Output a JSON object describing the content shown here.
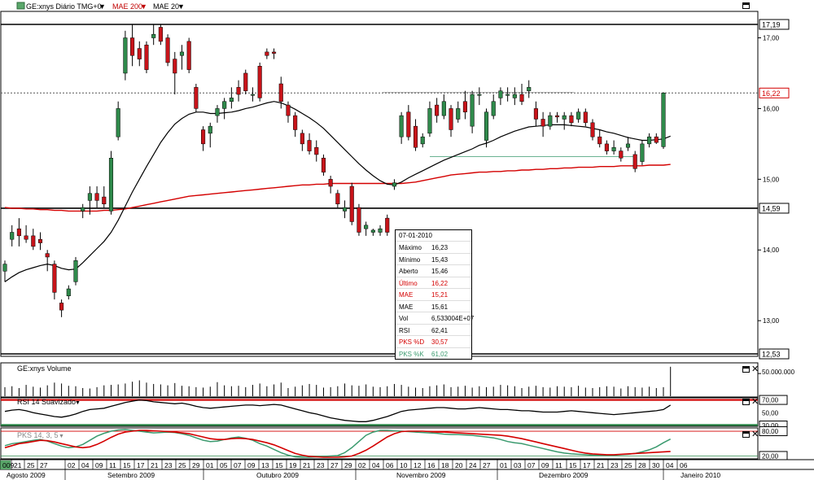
{
  "header": {
    "symbol_label": "GE:xnys Diário TMG+0",
    "mae200_label": "MAE 200",
    "mae20_label": "MAE 20"
  },
  "colors": {
    "up": "#2f8a4b",
    "down": "#c8141a",
    "mae20": "#000000",
    "mae200": "#d40000",
    "pks_d": "#d40000",
    "pks_k": "#3a9a6e"
  },
  "price_axis": {
    "ticks": [
      "17,00",
      "16,00",
      "15,00",
      "14,00",
      "13,00"
    ],
    "levels": [
      {
        "label": "17,19",
        "style": "black"
      },
      {
        "label": "16,22",
        "style": "red"
      },
      {
        "label": "14,59",
        "style": "black"
      },
      {
        "label": "12,53",
        "style": "black"
      }
    ]
  },
  "tooltip": {
    "date": "07-01-2010",
    "rows": [
      {
        "label": "Máximo",
        "value": "16,23",
        "color": "#000000"
      },
      {
        "label": "Mínimo",
        "value": "15,43",
        "color": "#000000"
      },
      {
        "label": "Aberto",
        "value": "15,46",
        "color": "#000000"
      },
      {
        "label": "Último",
        "value": "16,22",
        "color": "#d40000"
      },
      {
        "label": "MAE",
        "value": "15,21",
        "color": "#d40000"
      },
      {
        "label": "MAE",
        "value": "15,61",
        "color": "#000000"
      },
      {
        "label": "Vol",
        "value": "6,533004E+07",
        "color": "#000000"
      },
      {
        "label": "RSI",
        "value": "62,41",
        "color": "#000000"
      },
      {
        "label": "PKS %D",
        "value": "30,57",
        "color": "#d40000"
      },
      {
        "label": "PKS %K",
        "value": "61,02",
        "color": "#3a9a6e"
      }
    ]
  },
  "volume_panel": {
    "title": "GE:xnys Volume",
    "tick": "50.000.000"
  },
  "rsi_panel": {
    "title": "RSI 14 Suavizado",
    "ticks": [
      "70,00",
      "50,00",
      "30,00"
    ]
  },
  "pks_panel": {
    "title": "PKS 14, 3, 5",
    "ticks": [
      "80,00",
      "20,00"
    ]
  },
  "x_axis": {
    "days": [
      "009",
      "21",
      "25",
      "27",
      "02",
      "04",
      "09",
      "11",
      "15",
      "17",
      "21",
      "23",
      "25",
      "29",
      "01",
      "05",
      "07",
      "09",
      "13",
      "15",
      "19",
      "21",
      "23",
      "27",
      "29",
      "02",
      "04",
      "06",
      "10",
      "12",
      "16",
      "18",
      "20",
      "24",
      "27",
      "01",
      "03",
      "07",
      "09",
      "11",
      "15",
      "17",
      "21",
      "23",
      "25",
      "28",
      "30",
      "04",
      "06"
    ],
    "months": [
      "Agosto 2009",
      "Setembro 2009",
      "Outubro 2009",
      "Novembro 2009",
      "Dezembro 2009",
      "Janeiro 2010"
    ]
  },
  "chart_data": {
    "type": "candlestick",
    "title": "GE:xnys Diário TMG+0",
    "ylim": [
      12.53,
      17.19
    ],
    "horizontal_levels": [
      17.19,
      16.22,
      14.59,
      12.53
    ],
    "candles": [
      {
        "o": 13.7,
        "h": 13.85,
        "l": 13.55,
        "c": 13.8
      },
      {
        "o": 14.15,
        "h": 14.35,
        "l": 14.05,
        "c": 14.25
      },
      {
        "o": 14.3,
        "h": 14.45,
        "l": 14.05,
        "c": 14.2
      },
      {
        "o": 14.2,
        "h": 14.35,
        "l": 14.1,
        "c": 14.15
      },
      {
        "o": 14.2,
        "h": 14.3,
        "l": 14.0,
        "c": 14.05
      },
      {
        "o": 14.15,
        "h": 14.25,
        "l": 14.0,
        "c": 14.1
      },
      {
        "o": 13.95,
        "h": 14.0,
        "l": 13.7,
        "c": 13.9
      },
      {
        "o": 13.8,
        "h": 13.85,
        "l": 13.3,
        "c": 13.4
      },
      {
        "o": 13.25,
        "h": 13.3,
        "l": 13.05,
        "c": 13.15
      },
      {
        "o": 13.35,
        "h": 13.5,
        "l": 13.3,
        "c": 13.45
      },
      {
        "o": 13.55,
        "h": 13.9,
        "l": 13.5,
        "c": 13.85
      },
      {
        "o": 14.55,
        "h": 14.65,
        "l": 14.45,
        "c": 14.6
      },
      {
        "o": 14.7,
        "h": 14.9,
        "l": 14.5,
        "c": 14.8
      },
      {
        "o": 14.8,
        "h": 14.9,
        "l": 14.6,
        "c": 14.7
      },
      {
        "o": 14.75,
        "h": 14.9,
        "l": 14.6,
        "c": 14.65
      },
      {
        "o": 14.55,
        "h": 15.4,
        "l": 14.5,
        "c": 15.3
      },
      {
        "o": 15.6,
        "h": 16.1,
        "l": 15.55,
        "c": 16.0
      },
      {
        "o": 16.5,
        "h": 17.1,
        "l": 16.4,
        "c": 17.0
      },
      {
        "o": 17.0,
        "h": 17.19,
        "l": 16.6,
        "c": 16.75
      },
      {
        "o": 16.85,
        "h": 16.95,
        "l": 16.6,
        "c": 16.7
      },
      {
        "o": 16.9,
        "h": 16.95,
        "l": 16.5,
        "c": 16.55
      },
      {
        "o": 17.0,
        "h": 17.19,
        "l": 16.9,
        "c": 17.05
      },
      {
        "o": 17.15,
        "h": 17.19,
        "l": 16.9,
        "c": 16.95
      },
      {
        "o": 17.0,
        "h": 17.05,
        "l": 16.6,
        "c": 16.65
      },
      {
        "o": 16.7,
        "h": 16.8,
        "l": 16.2,
        "c": 16.5
      },
      {
        "o": 16.75,
        "h": 16.9,
        "l": 16.55,
        "c": 16.8
      },
      {
        "o": 16.95,
        "h": 17.0,
        "l": 16.5,
        "c": 16.55
      },
      {
        "o": 16.3,
        "h": 16.35,
        "l": 15.95,
        "c": 16.0
      },
      {
        "o": 15.7,
        "h": 15.75,
        "l": 15.4,
        "c": 15.5
      },
      {
        "o": 15.65,
        "h": 15.8,
        "l": 15.45,
        "c": 15.75
      },
      {
        "o": 15.9,
        "h": 16.05,
        "l": 15.8,
        "c": 16.0
      },
      {
        "o": 16.0,
        "h": 16.15,
        "l": 15.85,
        "c": 16.1
      },
      {
        "o": 16.1,
        "h": 16.3,
        "l": 16.0,
        "c": 16.15
      },
      {
        "o": 16.3,
        "h": 16.4,
        "l": 16.1,
        "c": 16.2
      },
      {
        "o": 16.5,
        "h": 16.55,
        "l": 16.2,
        "c": 16.25
      },
      {
        "o": 16.2,
        "h": 16.3,
        "l": 16.1,
        "c": 16.2
      },
      {
        "o": 16.6,
        "h": 16.65,
        "l": 16.1,
        "c": 16.15
      },
      {
        "o": 16.8,
        "h": 16.85,
        "l": 16.7,
        "c": 16.75
      },
      {
        "o": 16.8,
        "h": 16.85,
        "l": 16.7,
        "c": 16.78
      },
      {
        "o": 16.35,
        "h": 16.45,
        "l": 16.0,
        "c": 16.1
      },
      {
        "o": 16.05,
        "h": 16.1,
        "l": 15.8,
        "c": 15.9
      },
      {
        "o": 15.9,
        "h": 15.95,
        "l": 15.6,
        "c": 15.7
      },
      {
        "o": 15.65,
        "h": 15.7,
        "l": 15.4,
        "c": 15.5
      },
      {
        "o": 15.55,
        "h": 15.65,
        "l": 15.35,
        "c": 15.4
      },
      {
        "o": 15.45,
        "h": 15.55,
        "l": 15.25,
        "c": 15.35
      },
      {
        "o": 15.3,
        "h": 15.35,
        "l": 15.05,
        "c": 15.1
      },
      {
        "o": 15.0,
        "h": 15.05,
        "l": 14.8,
        "c": 14.9
      },
      {
        "o": 14.8,
        "h": 14.85,
        "l": 14.6,
        "c": 14.65
      },
      {
        "o": 14.55,
        "h": 14.7,
        "l": 14.45,
        "c": 14.6
      },
      {
        "o": 14.9,
        "h": 14.95,
        "l": 14.35,
        "c": 14.4
      },
      {
        "o": 14.6,
        "h": 14.65,
        "l": 14.2,
        "c": 14.25
      },
      {
        "o": 14.3,
        "h": 14.4,
        "l": 14.2,
        "c": 14.35
      },
      {
        "o": 14.25,
        "h": 14.3,
        "l": 14.2,
        "c": 14.28
      },
      {
        "o": 14.25,
        "h": 14.35,
        "l": 14.2,
        "c": 14.3
      },
      {
        "o": 14.45,
        "h": 14.5,
        "l": 14.2,
        "c": 14.25
      },
      {
        "o": 14.9,
        "h": 15.0,
        "l": 14.85,
        "c": 14.95
      },
      {
        "o": 15.6,
        "h": 15.95,
        "l": 15.5,
        "c": 15.9
      },
      {
        "o": 15.95,
        "h": 16.05,
        "l": 15.55,
        "c": 15.6
      },
      {
        "o": 15.75,
        "h": 15.85,
        "l": 15.4,
        "c": 15.45
      },
      {
        "o": 15.5,
        "h": 15.65,
        "l": 15.45,
        "c": 15.6
      },
      {
        "o": 15.65,
        "h": 16.1,
        "l": 15.6,
        "c": 16.0
      },
      {
        "o": 16.05,
        "h": 16.15,
        "l": 15.8,
        "c": 15.9
      },
      {
        "o": 15.9,
        "h": 16.2,
        "l": 15.85,
        "c": 16.1
      },
      {
        "o": 16.0,
        "h": 16.05,
        "l": 15.6,
        "c": 15.7
      },
      {
        "o": 15.85,
        "h": 16.1,
        "l": 15.8,
        "c": 16.0
      },
      {
        "o": 16.1,
        "h": 16.25,
        "l": 15.85,
        "c": 15.95
      },
      {
        "o": 15.75,
        "h": 16.25,
        "l": 15.65,
        "c": 16.2
      },
      {
        "o": 16.2,
        "h": 16.3,
        "l": 16.05,
        "c": 16.2
      },
      {
        "o": 15.55,
        "h": 16.0,
        "l": 15.45,
        "c": 15.95
      },
      {
        "o": 15.9,
        "h": 16.2,
        "l": 15.85,
        "c": 16.1
      },
      {
        "o": 16.15,
        "h": 16.3,
        "l": 16.05,
        "c": 16.25
      },
      {
        "o": 16.2,
        "h": 16.3,
        "l": 16.1,
        "c": 16.2
      },
      {
        "o": 16.15,
        "h": 16.3,
        "l": 16.05,
        "c": 16.2
      },
      {
        "o": 16.2,
        "h": 16.35,
        "l": 16.05,
        "c": 16.1
      },
      {
        "o": 16.25,
        "h": 16.4,
        "l": 16.15,
        "c": 16.3
      },
      {
        "o": 16.0,
        "h": 16.1,
        "l": 15.75,
        "c": 15.85
      },
      {
        "o": 15.85,
        "h": 15.95,
        "l": 15.6,
        "c": 15.75
      },
      {
        "o": 15.75,
        "h": 15.95,
        "l": 15.7,
        "c": 15.9
      },
      {
        "o": 15.9,
        "h": 15.95,
        "l": 15.8,
        "c": 15.88
      },
      {
        "o": 15.85,
        "h": 15.95,
        "l": 15.7,
        "c": 15.9
      },
      {
        "o": 15.9,
        "h": 15.95,
        "l": 15.75,
        "c": 15.8
      },
      {
        "o": 15.85,
        "h": 16.0,
        "l": 15.8,
        "c": 15.95
      },
      {
        "o": 15.95,
        "h": 16.0,
        "l": 15.75,
        "c": 15.8
      },
      {
        "o": 15.8,
        "h": 15.85,
        "l": 15.55,
        "c": 15.6
      },
      {
        "o": 15.6,
        "h": 15.7,
        "l": 15.45,
        "c": 15.5
      },
      {
        "o": 15.5,
        "h": 15.55,
        "l": 15.35,
        "c": 15.4
      },
      {
        "o": 15.4,
        "h": 15.55,
        "l": 15.35,
        "c": 15.45
      },
      {
        "o": 15.4,
        "h": 15.45,
        "l": 15.25,
        "c": 15.3
      },
      {
        "o": 15.45,
        "h": 15.6,
        "l": 15.4,
        "c": 15.5
      },
      {
        "o": 15.35,
        "h": 15.4,
        "l": 15.1,
        "c": 15.15
      },
      {
        "o": 15.25,
        "h": 15.55,
        "l": 15.2,
        "c": 15.5
      },
      {
        "o": 15.5,
        "h": 15.65,
        "l": 15.45,
        "c": 15.6
      },
      {
        "o": 15.6,
        "h": 15.65,
        "l": 15.5,
        "c": 15.52
      },
      {
        "o": 15.46,
        "h": 16.23,
        "l": 15.43,
        "c": 16.22
      }
    ],
    "mae20": [
      13.55,
      13.62,
      13.68,
      13.72,
      13.75,
      13.78,
      13.8,
      13.78,
      13.74,
      13.72,
      13.73,
      13.82,
      13.92,
      14.02,
      14.12,
      14.25,
      14.42,
      14.62,
      14.82,
      15.0,
      15.18,
      15.35,
      15.52,
      15.66,
      15.78,
      15.86,
      15.92,
      15.95,
      15.95,
      15.93,
      15.93,
      15.94,
      15.95,
      15.97,
      16.0,
      16.02,
      16.05,
      16.08,
      16.1,
      16.08,
      16.04,
      15.99,
      15.93,
      15.87,
      15.8,
      15.72,
      15.62,
      15.52,
      15.42,
      15.32,
      15.22,
      15.13,
      15.05,
      14.98,
      14.93,
      14.92,
      14.96,
      15.02,
      15.07,
      15.12,
      15.17,
      15.22,
      15.27,
      15.31,
      15.35,
      15.39,
      15.43,
      15.48,
      15.51,
      15.55,
      15.6,
      15.64,
      15.68,
      15.71,
      15.74,
      15.75,
      15.76,
      15.77,
      15.77,
      15.77,
      15.76,
      15.75,
      15.74,
      15.72,
      15.7,
      15.67,
      15.65,
      15.62,
      15.59,
      15.57,
      15.55,
      15.55,
      15.56,
      15.57,
      15.61
    ],
    "mae200": [
      14.6,
      14.59,
      14.59,
      14.58,
      14.58,
      14.57,
      14.57,
      14.56,
      14.56,
      14.55,
      14.55,
      14.55,
      14.55,
      14.55,
      14.56,
      14.56,
      14.57,
      14.58,
      14.6,
      14.62,
      14.64,
      14.66,
      14.68,
      14.7,
      14.72,
      14.74,
      14.76,
      14.77,
      14.78,
      14.79,
      14.8,
      14.81,
      14.82,
      14.83,
      14.84,
      14.85,
      14.86,
      14.87,
      14.88,
      14.89,
      14.9,
      14.91,
      14.92,
      14.92,
      14.93,
      14.93,
      14.94,
      14.94,
      14.94,
      14.94,
      14.94,
      14.94,
      14.94,
      14.94,
      14.94,
      14.94,
      14.94,
      14.95,
      14.96,
      14.98,
      15.0,
      15.02,
      15.04,
      15.06,
      15.07,
      15.08,
      15.09,
      15.1,
      15.1,
      15.11,
      15.11,
      15.12,
      15.12,
      15.13,
      15.13,
      15.14,
      15.14,
      15.15,
      15.15,
      15.16,
      15.16,
      15.17,
      15.17,
      15.17,
      15.18,
      15.18,
      15.18,
      15.19,
      15.19,
      15.19,
      15.19,
      15.2,
      15.2,
      15.2,
      15.21
    ],
    "volume": [
      20,
      22,
      18,
      25,
      21,
      19,
      24,
      30,
      28,
      23,
      22,
      18,
      17,
      20,
      24,
      25,
      26,
      28,
      32,
      35,
      30,
      27,
      26,
      24,
      29,
      23,
      22,
      20,
      19,
      21,
      31,
      24,
      22,
      23,
      20,
      25,
      28,
      22,
      26,
      30,
      18,
      21,
      24,
      27,
      25,
      19,
      20,
      22,
      28,
      24,
      23,
      26,
      21,
      20,
      22,
      27,
      25,
      21,
      19,
      18,
      22,
      24,
      26,
      20,
      21,
      23,
      19,
      22,
      20,
      21,
      25,
      24,
      22,
      18,
      21,
      23,
      20,
      19,
      22,
      21,
      20,
      23,
      19,
      18,
      20,
      22,
      21,
      17,
      22,
      20,
      19,
      21,
      18,
      20,
      65
    ],
    "volume_ylim": [
      0,
      70
    ],
    "rsi": [
      52,
      54,
      55,
      53,
      50,
      48,
      46,
      44,
      43,
      45,
      48,
      52,
      55,
      56,
      57,
      60,
      63,
      66,
      68,
      70,
      69,
      67,
      66,
      65,
      64,
      65,
      63,
      60,
      58,
      57,
      58,
      59,
      60,
      61,
      62,
      62,
      61,
      62,
      63,
      62,
      59,
      56,
      53,
      50,
      48,
      45,
      42,
      40,
      38,
      37,
      36,
      36,
      38,
      41,
      44,
      48,
      52,
      54,
      55,
      56,
      57,
      58,
      58,
      57,
      56,
      56,
      57,
      58,
      57,
      56,
      55,
      55,
      54,
      53,
      53,
      52,
      51,
      51,
      51,
      52,
      53,
      52,
      51,
      50,
      49,
      48,
      47,
      48,
      49,
      50,
      51,
      52,
      53,
      55,
      62
    ],
    "rsi_ylim": [
      30,
      72
    ],
    "pks_d": [
      40,
      45,
      50,
      52,
      55,
      58,
      57,
      54,
      50,
      46,
      42,
      40,
      42,
      48,
      56,
      65,
      73,
      78,
      80,
      82,
      82,
      81,
      80,
      79,
      78,
      76,
      74,
      70,
      66,
      62,
      60,
      60,
      62,
      63,
      62,
      60,
      56,
      52,
      47,
      40,
      33,
      26,
      22,
      19,
      18,
      17,
      17,
      17,
      18,
      20,
      26,
      34,
      44,
      55,
      66,
      74,
      79,
      80,
      80,
      80,
      79,
      78,
      78,
      77,
      76,
      75,
      74,
      73,
      72,
      71,
      70,
      68,
      65,
      62,
      58,
      54,
      50,
      46,
      42,
      38,
      34,
      30,
      27,
      25,
      24,
      23,
      23,
      24,
      25,
      26,
      27,
      28,
      29,
      30,
      31
    ],
    "pks_k": [
      45,
      50,
      52,
      55,
      58,
      60,
      56,
      50,
      44,
      40,
      42,
      48,
      58,
      68,
      75,
      80,
      83,
      84,
      82,
      80,
      78,
      76,
      77,
      78,
      77,
      74,
      70,
      64,
      58,
      55,
      56,
      60,
      64,
      66,
      63,
      58,
      50,
      44,
      36,
      28,
      22,
      18,
      17,
      17,
      18,
      19,
      20,
      21,
      28,
      40,
      55,
      70,
      78,
      82,
      82,
      81,
      80,
      79,
      78,
      77,
      76,
      75,
      73,
      72,
      72,
      71,
      70,
      68,
      66,
      64,
      60,
      55,
      52,
      50,
      46,
      42,
      38,
      34,
      30,
      27,
      25,
      24,
      23,
      22,
      22,
      22,
      22,
      23,
      24,
      26,
      30,
      35,
      42,
      52,
      61
    ],
    "pks_ylim": [
      15,
      86
    ]
  }
}
